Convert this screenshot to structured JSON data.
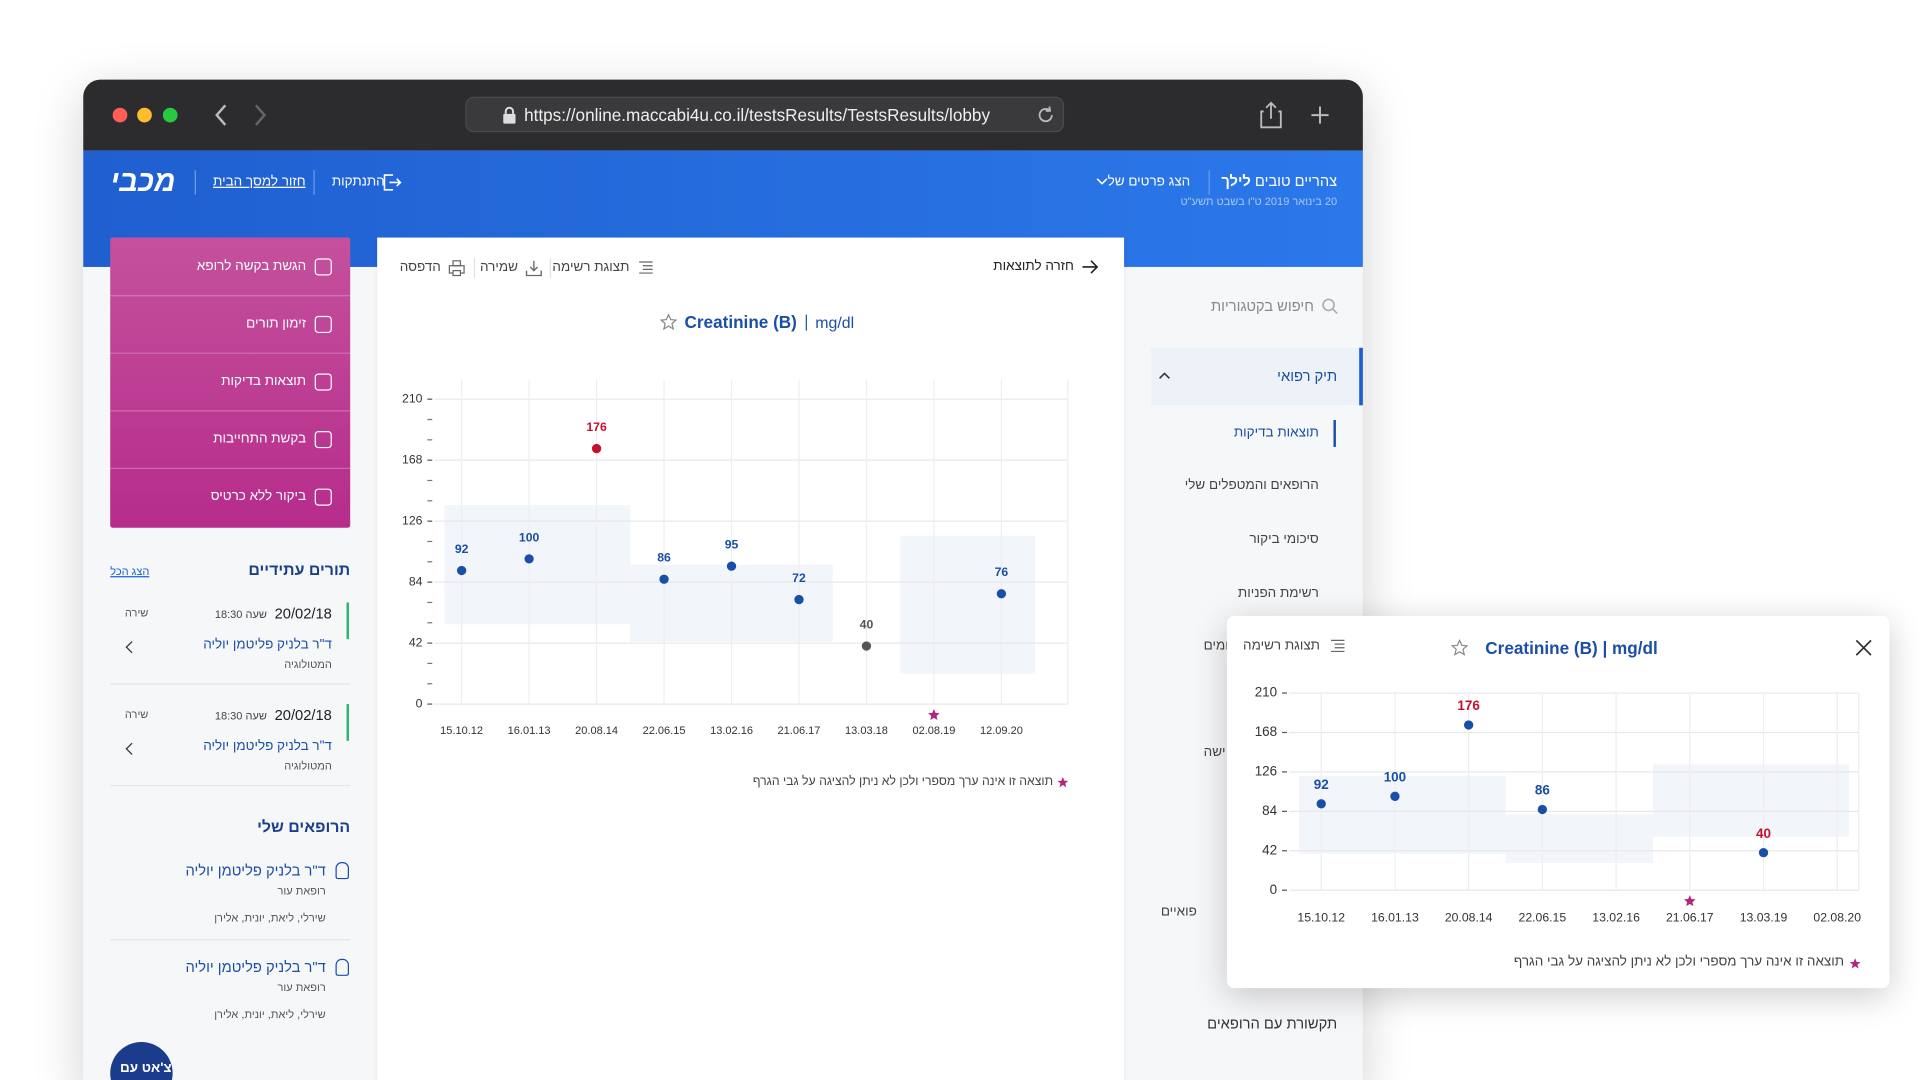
{
  "browser": {
    "url": "https://online.maccabi4u.co.il/testsResults/TestsResults/lobby"
  },
  "header": {
    "greeting": "צהריים טובים",
    "name": "לילך",
    "date": "20 בינואר 2019 ט\"ו בשבט תשע\"ט",
    "details": "הצג פרטים של",
    "logout": "התנתקות",
    "home": "חזור למסך הבית",
    "logo": "מכבי"
  },
  "side_menu": {
    "search": "חיפוש בקטגוריות",
    "section": "תיק רפואי",
    "items": [
      "תוצאות בדיקות",
      "הרופאים והמטפלים שלי",
      "סיכומי ביקור",
      "רשימת הפניות"
    ],
    "footer": "תקשורת עם הרופאים",
    "partial": [
      "ומים",
      "ישה",
      "פואיים"
    ]
  },
  "quick_actions": [
    "הגשת בקשה לרופא",
    "זימון תורים",
    "תוצאות בדיקות",
    "בקשת התחייבות",
    "ביקור ללא כרטיס"
  ],
  "appointments": {
    "title": "תורים עתידיים",
    "show_all": "הצג הכל",
    "items": [
      {
        "date": "20/02/18",
        "time": "שעה 18:30",
        "doctor": "ד\"ר בלניק פליטמן יוליה",
        "specialty": "המטולוגיה",
        "action": "שירה"
      },
      {
        "date": "20/02/18",
        "time": "שעה 18:30",
        "doctor": "ד\"ר בלניק פליטמן יוליה",
        "specialty": "המטולוגיה",
        "action": "שירה"
      }
    ]
  },
  "doctors": {
    "title": "הרופאים שלי",
    "items": [
      {
        "name": "ד\"ר בלניק פליטמן יוליה",
        "role": "רופאת עור",
        "team": "שירלי, ליאת, יונית, אלירן"
      },
      {
        "name": "ד\"ר בלניק פליטמן יוליה",
        "role": "רופאת עור",
        "team": "שירלי, ליאת, יונית, אלירן"
      }
    ]
  },
  "chat": "צ'אט עם",
  "toolbar": {
    "back": "חזרה לתוצאות",
    "list": "תצוגת רשימה",
    "save": "שמירה",
    "print": "הדפסה"
  },
  "popup": {
    "list": "תצוגת רשימה"
  },
  "chart_data": [
    {
      "type": "dot",
      "title": "Creatinine (B)",
      "unit": "mg/dl",
      "categories": [
        "15.10.12",
        "16.01.13",
        "20.08.14",
        "22.06.15",
        "13.02.16",
        "21.06.17",
        "13.03.18",
        "02.08.19",
        "12.09.20"
      ],
      "values": [
        92,
        100,
        176,
        86,
        95,
        72,
        40,
        null,
        76
      ],
      "point_colors": [
        "#1a4fa8",
        "#1a4fa8",
        "#c8102e",
        "#1a4fa8",
        "#1a4fa8",
        "#1a4fa8",
        "#555555",
        null,
        "#1a4fa8"
      ],
      "nonnumeric_indices": [
        7
      ],
      "star_color": "#b0267e",
      "ylim": [
        0,
        210
      ],
      "yticks": [
        0,
        42,
        84,
        126,
        168,
        210
      ],
      "minor_yticks": [
        14,
        28,
        56,
        70,
        98,
        112,
        140,
        154,
        182,
        196
      ],
      "grid": true,
      "bands": [
        {
          "from": 0,
          "to": 2,
          "low": 55,
          "high": 137
        },
        {
          "from": 3,
          "to": 5,
          "low": 43,
          "high": 96
        },
        {
          "from": 7,
          "to": 8,
          "low": 21,
          "high": 116
        }
      ],
      "band_color": "#f2f5f9",
      "footnote": "תוצאה זו אינה ערך מספרי ולכן לא ניתן להציגה על גבי הגרף"
    },
    {
      "type": "dot",
      "title": "Creatinine (B) | mg/dl",
      "categories": [
        "15.10.12",
        "16.01.13",
        "20.08.14",
        "22.06.15",
        "13.02.16",
        "21.06.17",
        "13.03.19",
        "02.08.20"
      ],
      "values": [
        92,
        100,
        176,
        86,
        null,
        null,
        40,
        null
      ],
      "point_colors": [
        "#1a4fa8",
        "#1a4fa8",
        "#1a4fa8",
        "#1a4fa8",
        null,
        null,
        "#1a4fa8",
        null
      ],
      "label_colors": [
        "#1a4fa8",
        "#1a4fa8",
        "#c8102e",
        "#1a4fa8",
        null,
        null,
        "#c8102e",
        null
      ],
      "nonnumeric_indices": [
        5
      ],
      "star_color": "#b0267e",
      "ylim": [
        0,
        210
      ],
      "yticks": [
        0,
        42,
        84,
        126,
        168,
        210
      ],
      "grid": true,
      "bands": [
        {
          "from": 0,
          "to": 2,
          "low": 39,
          "high": 122
        },
        {
          "from": 3,
          "to": 4,
          "low": 29,
          "high": 81
        },
        {
          "from": 5,
          "to": 7,
          "low": 57,
          "high": 134
        }
      ],
      "band_color": "#f2f5f9",
      "footnote": "תוצאה זו אינה ערך מספרי ולכן לא ניתן להציגה על גבי הגרף"
    }
  ]
}
